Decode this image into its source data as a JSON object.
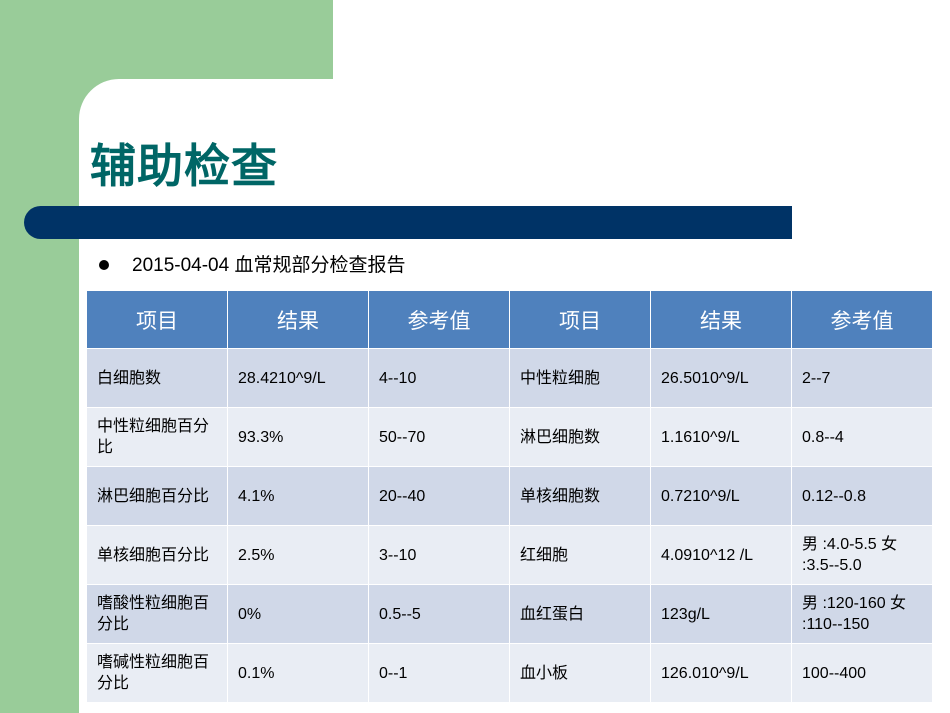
{
  "slide": {
    "title": "辅助检查",
    "bullet": "2015-04-04 血常规部分检查报告"
  },
  "table": {
    "headers": [
      "项目",
      "结果",
      "参考值",
      "项目",
      "结果",
      "参考值"
    ],
    "rows": [
      [
        "白细胞数",
        "28.4210^9/L",
        "4--10",
        "中性粒细胞",
        "26.5010^9/L",
        "2--7"
      ],
      [
        "中性粒细胞百分比",
        "93.3%",
        "50--70",
        "淋巴细胞数",
        "1.1610^9/L",
        "0.8--4"
      ],
      [
        "淋巴细胞百分比",
        "4.1%",
        "20--40",
        "单核细胞数",
        "0.7210^9/L",
        "0.12--0.8"
      ],
      [
        "单核细胞百分比",
        "2.5%",
        "3--10",
        "红细胞",
        "4.0910^12 /L",
        "男 :4.0-5.5 女 :3.5--5.0"
      ],
      [
        "嗜酸性粒细胞百分比",
        "0%",
        "0.5--5",
        "血红蛋白",
        "123g/L",
        "男 :120-160 女 :110--150"
      ],
      [
        "嗜碱性粒细胞百分比",
        "0.1%",
        "0--1",
        "血小板",
        "126.010^9/L",
        "100--400"
      ]
    ]
  },
  "colors": {
    "accent_green": "#99cc99",
    "title_teal": "#006666",
    "bar_navy": "#003366",
    "header_blue": "#4f81bd",
    "row_dark": "#d0d8e8",
    "row_light": "#e9edf4"
  }
}
